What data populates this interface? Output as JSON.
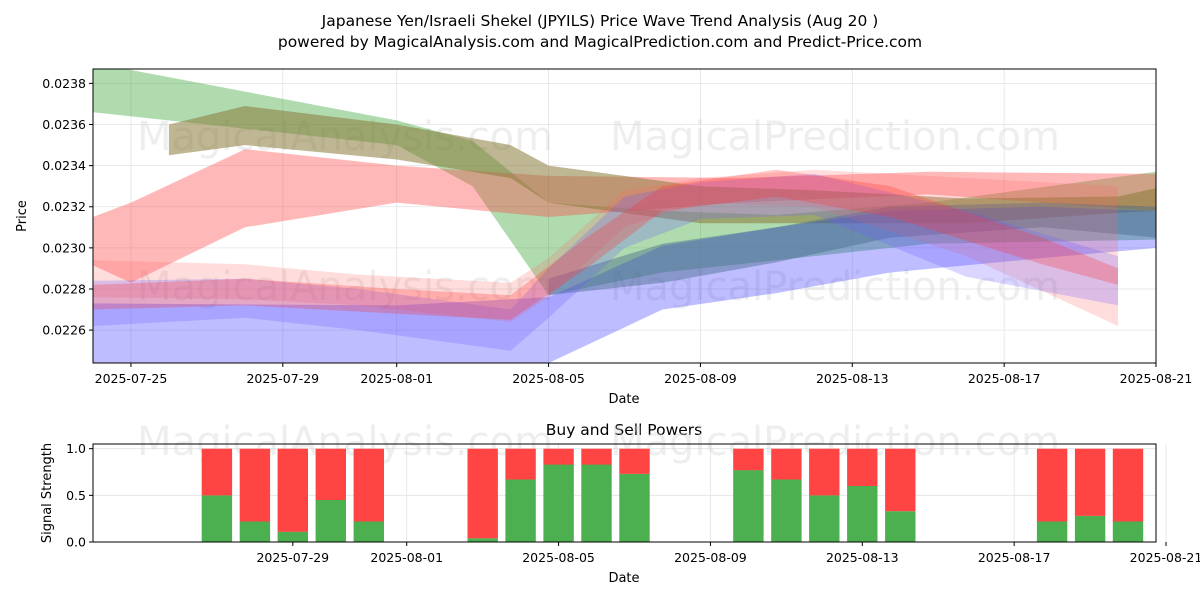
{
  "chart_data": [
    {
      "type": "area",
      "title": "Japanese Yen/Israeli Shekel (JPYILS) Price Wave Trend Analysis (Aug 20 )",
      "subtitle": "powered by MagicalAnalysis.com and MagicalPrediction.com and Predict-Price.com",
      "xlabel": "Date",
      "ylabel": "Price",
      "xlim": [
        "2025-07-24",
        "2025-08-21"
      ],
      "ylim": [
        0.02244,
        0.02387
      ],
      "x_ticks": [
        "2025-07-25",
        "2025-07-29",
        "2025-08-01",
        "2025-08-05",
        "2025-08-09",
        "2025-08-13",
        "2025-08-17",
        "2025-08-21"
      ],
      "y_ticks": [
        "0.0226",
        "0.0228",
        "0.0230",
        "0.0232",
        "0.0234",
        "0.0236",
        "0.0238"
      ],
      "grid": true,
      "watermarks": [
        "MagicalAnalysis.com",
        "MagicalPrediction.com"
      ],
      "series": [
        {
          "name": "wave-green",
          "color": "#2ca02c",
          "opacity": 0.38,
          "x": [
            "2025-07-24",
            "2025-08-01",
            "2025-08-03",
            "2025-08-05",
            "2025-08-08",
            "2025-08-11",
            "2025-08-15",
            "2025-08-21"
          ],
          "upper": [
            0.0239,
            0.02362,
            0.02352,
            0.02322,
            0.02318,
            0.02316,
            0.02322,
            0.02337
          ],
          "lower": [
            0.02366,
            0.0235,
            0.0233,
            0.02277,
            0.02288,
            0.02294,
            0.02302,
            0.02304
          ]
        },
        {
          "name": "wave-red-upper",
          "color": "#ff4444",
          "opacity": 0.38,
          "x": [
            "2025-07-23",
            "2025-07-25",
            "2025-07-28",
            "2025-08-01",
            "2025-08-05",
            "2025-08-10",
            "2025-08-15",
            "2025-08-21"
          ],
          "upper": [
            0.02308,
            0.02322,
            0.02348,
            0.0234,
            0.02335,
            0.02334,
            0.02337,
            0.02336
          ],
          "lower": [
            0.023,
            0.02283,
            0.0231,
            0.02322,
            0.02315,
            0.02322,
            0.02326,
            0.02318
          ]
        },
        {
          "name": "wave-olive",
          "color": "#8b7a3a",
          "opacity": 0.55,
          "x": [
            "2025-07-26",
            "2025-07-28",
            "2025-08-01",
            "2025-08-04",
            "2025-08-05",
            "2025-08-09",
            "2025-08-12",
            "2025-08-16",
            "2025-08-20",
            "2025-08-21"
          ],
          "upper": [
            0.0236,
            0.02369,
            0.0236,
            0.0235,
            0.0234,
            0.0233,
            0.02328,
            0.02324,
            0.02325,
            0.02329
          ],
          "lower": [
            0.02345,
            0.0235,
            0.02343,
            0.02334,
            0.02322,
            0.02312,
            0.02312,
            0.02312,
            0.02317,
            0.02318
          ]
        },
        {
          "name": "wave-blue-low",
          "color": "#3333ff",
          "opacity": 0.32,
          "x": [
            "2025-07-24",
            "2025-08-01",
            "2025-08-05",
            "2025-08-08",
            "2025-08-11",
            "2025-08-14",
            "2025-08-18",
            "2025-08-21"
          ],
          "upper": [
            0.02273,
            0.02272,
            0.02276,
            0.02301,
            0.0231,
            0.02318,
            0.0232,
            0.02318
          ],
          "lower": [
            0.02244,
            0.02244,
            0.02244,
            0.0227,
            0.02278,
            0.02288,
            0.02295,
            0.023
          ]
        },
        {
          "name": "wave-slate",
          "color": "#4a6a8a",
          "opacity": 0.45,
          "x": [
            "2025-08-05",
            "2025-08-08",
            "2025-08-11",
            "2025-08-14",
            "2025-08-18",
            "2025-08-21"
          ],
          "upper": [
            0.02285,
            0.02302,
            0.0231,
            0.0232,
            0.02322,
            0.0232
          ],
          "lower": [
            0.02277,
            0.02283,
            0.02293,
            0.02305,
            0.0231,
            0.02305
          ]
        },
        {
          "name": "wave-pink-cluster",
          "color": "#ff6666",
          "opacity": 0.22,
          "x": [
            "2025-07-24",
            "2025-07-28",
            "2025-07-31",
            "2025-08-04",
            "2025-08-05",
            "2025-08-07",
            "2025-08-09",
            "2025-08-12",
            "2025-08-16",
            "2025-08-20"
          ],
          "upper": [
            0.02294,
            0.02292,
            0.02287,
            0.02283,
            0.02295,
            0.02328,
            0.02334,
            0.02338,
            0.02334,
            0.0233
          ],
          "lower": [
            0.02276,
            0.02275,
            0.02272,
            0.02264,
            0.02276,
            0.0231,
            0.02322,
            0.0232,
            0.02296,
            0.02262
          ]
        },
        {
          "name": "wave-purple-cluster",
          "color": "#6a5cff",
          "opacity": 0.25,
          "x": [
            "2025-07-24",
            "2025-07-28",
            "2025-07-31",
            "2025-08-04",
            "2025-08-05",
            "2025-08-07",
            "2025-08-09",
            "2025-08-12",
            "2025-08-16",
            "2025-08-20"
          ],
          "upper": [
            0.02284,
            0.02285,
            0.0228,
            0.0227,
            0.0229,
            0.02325,
            0.02332,
            0.02336,
            0.02318,
            0.02296
          ],
          "lower": [
            0.02262,
            0.02266,
            0.0226,
            0.0225,
            0.02266,
            0.023,
            0.02314,
            0.02316,
            0.02286,
            0.02272
          ]
        },
        {
          "name": "wave-red-band",
          "color": "#ff3333",
          "opacity": 0.28,
          "x": [
            "2025-07-24",
            "2025-07-28",
            "2025-08-01",
            "2025-08-04",
            "2025-08-06",
            "2025-08-08",
            "2025-08-11",
            "2025-08-14",
            "2025-08-18",
            "2025-08-20"
          ],
          "upper": [
            0.02282,
            0.02285,
            0.0228,
            0.02277,
            0.02305,
            0.0233,
            0.02338,
            0.0233,
            0.02305,
            0.0229
          ],
          "lower": [
            0.0227,
            0.02272,
            0.02268,
            0.02265,
            0.0229,
            0.02318,
            0.02325,
            0.02315,
            0.02292,
            0.02282
          ]
        }
      ]
    },
    {
      "type": "bar",
      "stacked": true,
      "title": "Buy and Sell Powers",
      "xlabel": "Date",
      "ylabel": "Signal Strength",
      "ylim": [
        0,
        1.05
      ],
      "y_ticks": [
        "0.0",
        "0.5",
        "1.0"
      ],
      "x_ticks": [
        "2025-07-29",
        "2025-08-01",
        "2025-08-05",
        "2025-08-09",
        "2025-08-13",
        "2025-08-17",
        "2025-08-21"
      ],
      "xlim": [
        "2025-07-24",
        "2025-08-21"
      ],
      "grid": true,
      "watermarks": [
        "MagicalAnalysis.com",
        "MagicalPrediction.com"
      ],
      "colors": {
        "buy": "#4caf50",
        "sell": "#ff4444"
      },
      "categories": [
        "2025-07-27",
        "2025-07-28",
        "2025-07-29",
        "2025-07-30",
        "2025-07-31",
        "2025-08-03",
        "2025-08-04",
        "2025-08-05",
        "2025-08-06",
        "2025-08-07",
        "2025-08-10",
        "2025-08-11",
        "2025-08-12",
        "2025-08-13",
        "2025-08-14",
        "2025-08-18",
        "2025-08-19",
        "2025-08-20"
      ],
      "series": [
        {
          "name": "Buy",
          "values": [
            0.5,
            0.22,
            0.11,
            0.45,
            0.22,
            0.04,
            0.67,
            0.83,
            0.83,
            0.73,
            0.77,
            0.67,
            0.5,
            0.6,
            0.33,
            0.22,
            0.28,
            0.22
          ]
        },
        {
          "name": "Sell",
          "values": [
            0.5,
            0.78,
            0.89,
            0.55,
            0.78,
            0.96,
            0.33,
            0.17,
            0.17,
            0.27,
            0.23,
            0.33,
            0.5,
            0.4,
            0.67,
            0.78,
            0.72,
            0.78
          ]
        }
      ]
    }
  ]
}
